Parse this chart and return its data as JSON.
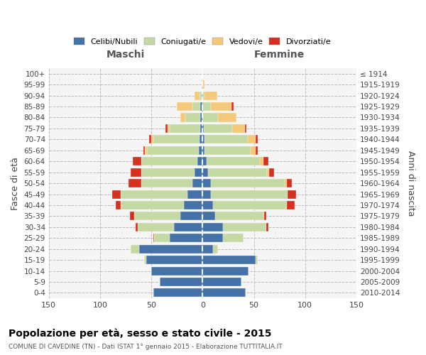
{
  "age_groups": [
    "0-4",
    "5-9",
    "10-14",
    "15-19",
    "20-24",
    "25-29",
    "30-34",
    "35-39",
    "40-44",
    "45-49",
    "50-54",
    "55-59",
    "60-64",
    "65-69",
    "70-74",
    "75-79",
    "80-84",
    "85-89",
    "90-94",
    "95-99",
    "100+"
  ],
  "birth_years": [
    "2010-2014",
    "2005-2009",
    "2000-2004",
    "1995-1999",
    "1990-1994",
    "1985-1989",
    "1980-1984",
    "1975-1979",
    "1970-1974",
    "1965-1969",
    "1960-1964",
    "1955-1959",
    "1950-1954",
    "1945-1949",
    "1940-1944",
    "1935-1939",
    "1930-1934",
    "1925-1929",
    "1920-1924",
    "1915-1919",
    "≤ 1914"
  ],
  "maschi_celibi": [
    48,
    42,
    50,
    55,
    62,
    32,
    28,
    22,
    18,
    15,
    10,
    8,
    5,
    4,
    3,
    2,
    2,
    2,
    1,
    1,
    0
  ],
  "maschi_coniugati": [
    0,
    0,
    0,
    2,
    8,
    15,
    35,
    45,
    62,
    65,
    50,
    52,
    55,
    50,
    45,
    30,
    15,
    8,
    2,
    0,
    0
  ],
  "maschi_vedovi": [
    0,
    0,
    0,
    0,
    0,
    0,
    0,
    0,
    0,
    0,
    0,
    0,
    0,
    2,
    2,
    2,
    5,
    15,
    5,
    0,
    0
  ],
  "maschi_divorziati": [
    0,
    0,
    0,
    0,
    0,
    1,
    2,
    4,
    5,
    8,
    12,
    10,
    8,
    2,
    2,
    2,
    0,
    0,
    0,
    0,
    0
  ],
  "femmine_nubili": [
    42,
    38,
    45,
    52,
    10,
    20,
    20,
    12,
    10,
    8,
    8,
    5,
    4,
    2,
    2,
    1,
    0,
    0,
    0,
    0,
    0
  ],
  "femmine_coniugate": [
    0,
    0,
    0,
    2,
    5,
    20,
    42,
    48,
    72,
    75,
    72,
    58,
    52,
    45,
    42,
    28,
    15,
    8,
    2,
    0,
    0
  ],
  "femmine_vedove": [
    0,
    0,
    0,
    0,
    0,
    0,
    0,
    0,
    0,
    0,
    2,
    2,
    3,
    5,
    8,
    12,
    18,
    20,
    12,
    2,
    0
  ],
  "femmine_divorziate": [
    0,
    0,
    0,
    0,
    0,
    0,
    2,
    2,
    8,
    8,
    5,
    5,
    5,
    2,
    2,
    2,
    0,
    2,
    0,
    0,
    0
  ],
  "color_celibi": "#4472a8",
  "color_coniugati": "#c5d9a4",
  "color_vedovi": "#f5c97a",
  "color_divorziati": "#d63020",
  "xlim": 150,
  "title": "Popolazione per età, sesso e stato civile - 2015",
  "subtitle": "COMUNE DI CAVEDINE (TN) - Dati ISTAT 1° gennaio 2015 - Elaborazione TUTTITALIA.IT",
  "ylabel_left": "Fasce di età",
  "ylabel_right": "Anni di nascita",
  "header_left": "Maschi",
  "header_right": "Femmine",
  "legend_labels": [
    "Celibi/Nubili",
    "Coniugati/e",
    "Vedovi/e",
    "Divorziati/e"
  ],
  "bg_color": "#f5f5f5"
}
